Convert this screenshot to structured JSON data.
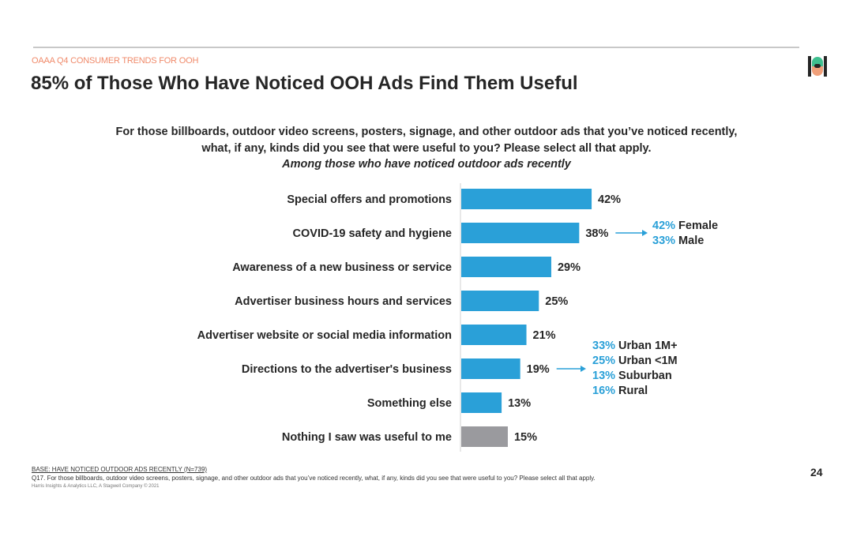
{
  "header": {
    "kicker": "OAAA Q4 CONSUMER TRENDS FOR OOH",
    "title": "85% of Those Who Have Noticed OOH Ads Find Them Useful",
    "logo": "Harris Insights logo"
  },
  "question": "For those billboards, outdoor video screens, posters, signage, and other outdoor ads that you’ve noticed recently, what, if any, kinds did you see that were useful to you?  Please select all that apply.",
  "subtitle": "Among those who have noticed outdoor ads recently",
  "chart_data": {
    "type": "bar",
    "orientation": "horizontal",
    "categories": [
      "Special offers and promotions",
      "COVID-19 safety and hygiene",
      "Awareness of a new business or service",
      "Advertiser business hours and services",
      "Advertiser website or social media information",
      "Directions to the advertiser's business",
      "Something else",
      "Nothing I saw was useful to me"
    ],
    "values": [
      42,
      38,
      29,
      25,
      21,
      19,
      13,
      15
    ],
    "labels": [
      "42%",
      "38%",
      "29%",
      "25%",
      "21%",
      "19%",
      "13%",
      "15%"
    ],
    "unit": "%",
    "xlim": [
      0,
      100
    ],
    "grid": false,
    "colors": [
      "#2aa0d8",
      "#2aa0d8",
      "#2aa0d8",
      "#2aa0d8",
      "#2aa0d8",
      "#2aa0d8",
      "#2aa0d8",
      "#9a9a9e"
    ],
    "annotations": [
      {
        "category_index": 1,
        "items": [
          {
            "pct": "42%",
            "label": "Female"
          },
          {
            "pct": "33%",
            "label": "Male"
          }
        ]
      },
      {
        "category_index": 5,
        "items": [
          {
            "pct": "33%",
            "label": "Urban 1M+"
          },
          {
            "pct": "25%",
            "label": "Urban <1M"
          },
          {
            "pct": "13%",
            "label": "Suburban"
          },
          {
            "pct": "16%",
            "label": "Rural"
          }
        ]
      }
    ]
  },
  "footer": {
    "base": "BASE: HAVE NOTICED OUTDOOR ADS RECENTLY (N=739)",
    "question_note": "Q17. For those billboards, outdoor video screens, posters, signage, and other outdoor ads that you’ve noticed recently, what, if any, kinds did you see that were useful to you?  Please select all that apply.",
    "copyright": "Harris Insights & Analytics LLC, A Stagwell Company © 2021",
    "page_number": "24"
  },
  "colors": {
    "accent": "#2aa0d8",
    "kicker": "#f08a6a",
    "other_bar": "#9a9a9e"
  }
}
